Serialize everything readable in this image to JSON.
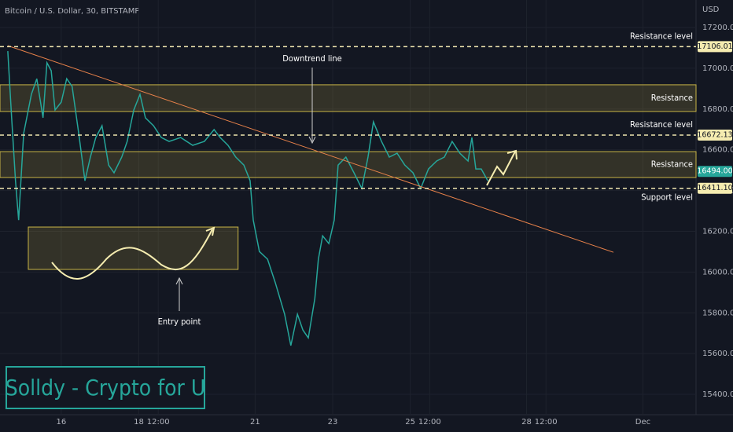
{
  "chart_data": {
    "type": "line",
    "title": "Bitcoin / U.S. Dollar, 30, BITSTAMP",
    "y_axis_label": "USD",
    "color": "#26a69a",
    "x": [
      14.62,
      14.72,
      14.82,
      14.9,
      15.03,
      15.23,
      15.37,
      15.53,
      15.63,
      15.74,
      15.84,
      16,
      16.14,
      16.28,
      16.45,
      16.61,
      16.75,
      16.89,
      17.05,
      17.22,
      17.36,
      17.56,
      17.7,
      17.87,
      18.03,
      18.17,
      18.38,
      18.58,
      18.78,
      19.08,
      19.39,
      19.69,
      19.94,
      20.1,
      20.3,
      20.5,
      20.71,
      20.87,
      20.95,
      21.11,
      21.32,
      21.52,
      21.76,
      21.92,
      22.09,
      22.23,
      22.37,
      22.54,
      22.63,
      22.74,
      22.9,
      23.04,
      23.14,
      23.34,
      23.55,
      23.75,
      23.91,
      24.05,
      24.26,
      24.46,
      24.66,
      24.86,
      25.07,
      25.27,
      25.47,
      25.68,
      25.88,
      26.08,
      26.28,
      26.49,
      26.59,
      26.69,
      26.83,
      27
    ],
    "values": [
      17084,
      16757,
      16448,
      16255,
      16680,
      16872,
      16949,
      16757,
      17027,
      16988,
      16795,
      16834,
      16949,
      16911,
      16680,
      16448,
      16564,
      16660,
      16718,
      16525,
      16487,
      16564,
      16641,
      16795,
      16872,
      16757,
      16718,
      16660,
      16641,
      16660,
      16622,
      16641,
      16699,
      16660,
      16622,
      16564,
      16525,
      16448,
      16255,
      16101,
      16063,
      15947,
      15793,
      15639,
      15793,
      15716,
      15677,
      15870,
      16063,
      16178,
      16140,
      16255,
      16525,
      16564,
      16487,
      16410,
      16564,
      16737,
      16641,
      16564,
      16583,
      16525,
      16487,
      16410,
      16506,
      16545,
      16564,
      16641,
      16583,
      16545,
      16660,
      16506,
      16506,
      16448
    ],
    "xlim": [
      14.42,
      32.37
    ],
    "ylim": [
      15300,
      17335
    ],
    "xticks": [
      16,
      18,
      {
        "value": 18.5,
        "label": "12:00"
      },
      21,
      23,
      25,
      {
        "value": 25.5,
        "label": "12:00"
      },
      28,
      {
        "value": 28.5,
        "label": "12:00"
      },
      {
        "value": 31,
        "label": "Dec"
      }
    ],
    "yticks": [
      {
        "value": 17200,
        "label": "17200.00"
      },
      {
        "value": 17000,
        "label": "17000.00"
      },
      {
        "value": 16800,
        "label": "16800.00"
      },
      {
        "value": 16600,
        "label": "16600.00"
      },
      {
        "value": 16400,
        "label": "16400.00"
      },
      {
        "value": 16200,
        "label": "16200.00"
      },
      {
        "value": 16000,
        "label": "16000.00"
      },
      {
        "value": 15800,
        "label": "15800.00"
      },
      {
        "value": 15600,
        "label": "15600.00"
      },
      {
        "value": 15400,
        "label": "15400.00"
      }
    ],
    "levels": [
      {
        "value": 17106.01,
        "label": "17106.01",
        "annotation": "Resistance level"
      },
      {
        "value": 16672.13,
        "label": "16672.13",
        "annotation": "Resistance level"
      },
      {
        "value": 16411.1,
        "label": "16411.10",
        "annotation": "Support level"
      }
    ],
    "zones": [
      {
        "range": [
          16788,
          16919
        ],
        "annotation": "Resistance"
      },
      {
        "range": [
          16464,
          16591
        ],
        "annotation": "Resistance"
      }
    ],
    "last_price": {
      "value": 16494,
      "label": "16494.00"
    },
    "trend_line": {
      "x": [
        14.62,
        30.24
      ],
      "values": [
        17111,
        16097
      ],
      "annotation": "Downtrend line"
    },
    "entry_zone": {
      "x": [
        15.15,
        20.56
      ],
      "range": [
        16013,
        16221
      ],
      "annotation": "Entry point"
    },
    "watermark": "Solldy - Crypto for U"
  }
}
